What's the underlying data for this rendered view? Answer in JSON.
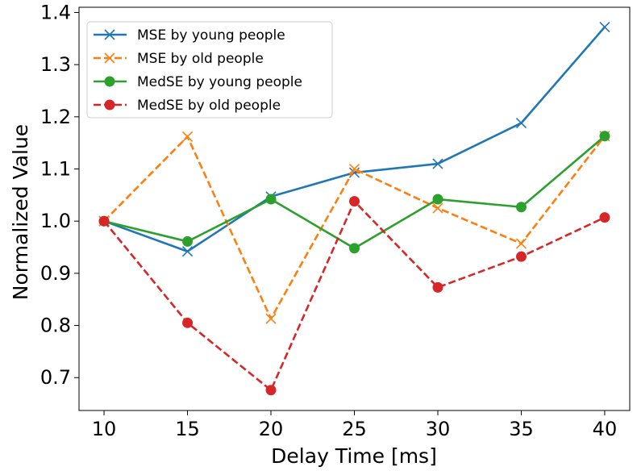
{
  "chart_data": {
    "type": "line",
    "xlabel": "Delay Time [ms]",
    "ylabel": "Normalized Value",
    "x": [
      10,
      15,
      20,
      25,
      30,
      35,
      40
    ],
    "xticks": [
      "10",
      "15",
      "20",
      "25",
      "30",
      "35",
      "40"
    ],
    "yticks": [
      "0.7",
      "0.8",
      "0.9",
      "1.0",
      "1.1",
      "1.2",
      "1.3",
      "1.4"
    ],
    "xlim": [
      8.5,
      41.5
    ],
    "ylim": [
      0.637,
      1.41
    ],
    "grid": false,
    "legend_position": "top-left",
    "series": [
      {
        "name": "MSE by young people",
        "color": "#1f77b4",
        "linestyle": "solid",
        "marker": "x",
        "values": [
          1.0,
          0.942,
          1.047,
          1.093,
          1.11,
          1.188,
          1.372
        ]
      },
      {
        "name": "MSE by old people",
        "color": "#ff7f0e",
        "linestyle": "dashed",
        "marker": "x",
        "values": [
          1.0,
          1.162,
          0.813,
          1.1,
          1.025,
          0.957,
          1.163
        ]
      },
      {
        "name": "MedSE by young people",
        "color": "#2ca02c",
        "linestyle": "solid",
        "marker": "o",
        "values": [
          1.0,
          0.961,
          1.042,
          0.948,
          1.042,
          1.027,
          1.163
        ]
      },
      {
        "name": "MedSE by old people",
        "color": "#d62728",
        "linestyle": "dashed",
        "marker": "o",
        "values": [
          1.0,
          0.805,
          0.676,
          1.038,
          0.873,
          0.932,
          1.007
        ]
      }
    ]
  }
}
